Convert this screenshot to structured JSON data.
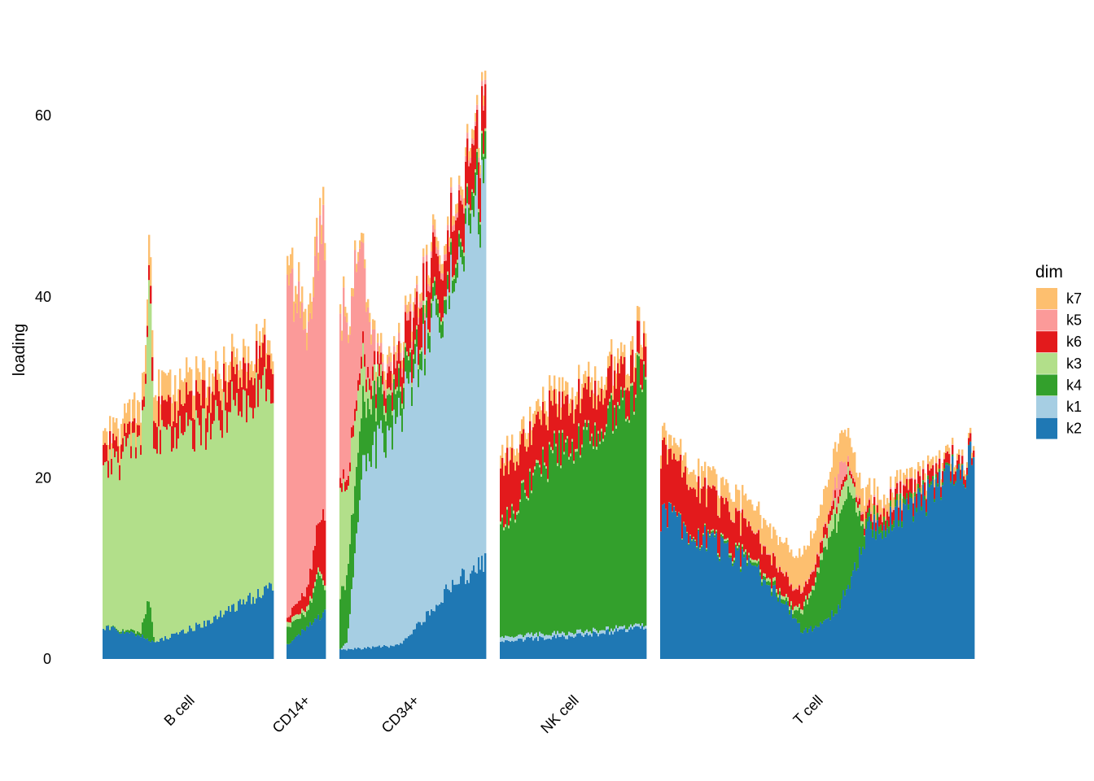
{
  "chart_data": {
    "type": "bar",
    "subtype": "stacked-structure-plot",
    "title": "",
    "xlabel": "",
    "ylabel": "loading",
    "ylim": [
      0,
      68
    ],
    "yticks": [
      0,
      20,
      40,
      60
    ],
    "grid": false,
    "legend": {
      "title": "dim",
      "placement": "right",
      "entries": [
        {
          "name": "k7",
          "color": "#FDBF6F"
        },
        {
          "name": "k5",
          "color": "#FB9A99"
        },
        {
          "name": "k6",
          "color": "#E31A1C"
        },
        {
          "name": "k3",
          "color": "#B2DF8A"
        },
        {
          "name": "k4",
          "color": "#33A02C"
        },
        {
          "name": "k1",
          "color": "#A6CEE3"
        },
        {
          "name": "k2",
          "color": "#1F78B4"
        }
      ]
    },
    "stack_order_bottom_to_top": [
      "k2",
      "k1",
      "k4",
      "k3",
      "k6",
      "k5",
      "k7"
    ],
    "groups": [
      {
        "name": "B cell",
        "profile": {
          "k2": [
            [
              0,
              3.5
            ],
            [
              0.22,
              2.5
            ],
            [
              0.3,
              1.8
            ],
            [
              0.6,
              4
            ],
            [
              1,
              8
            ]
          ],
          "k1": [
            [
              0,
              0
            ],
            [
              1,
              0
            ]
          ],
          "k4": [
            [
              0,
              0
            ],
            [
              0.22,
              0.4
            ],
            [
              0.27,
              5
            ],
            [
              0.3,
              0
            ],
            [
              1,
              0
            ]
          ],
          "k3": [
            [
              0,
              17.5
            ],
            [
              0.22,
              21
            ],
            [
              0.27,
              33
            ],
            [
              0.3,
              21.5
            ],
            [
              0.6,
              22
            ],
            [
              1,
              22.5
            ]
          ],
          "k6": [
            [
              0,
              2
            ],
            [
              0.25,
              1
            ],
            [
              0.3,
              3
            ],
            [
              1,
              3.5
            ]
          ],
          "k5": [
            [
              0,
              0
            ],
            [
              1,
              0
            ]
          ],
          "k7": [
            [
              0,
              1.5
            ],
            [
              0.27,
              3
            ],
            [
              1,
              1.5
            ]
          ]
        }
      },
      {
        "name": "CD14+",
        "profile": {
          "k2": [
            [
              0,
              1.5
            ],
            [
              0.5,
              3.5
            ],
            [
              1,
              5.5
            ]
          ],
          "k1": [
            [
              0,
              0
            ],
            [
              1,
              0
            ]
          ],
          "k4": [
            [
              0,
              2
            ],
            [
              0.5,
              1.5
            ],
            [
              0.85,
              5
            ],
            [
              1,
              1
            ]
          ],
          "k3": [
            [
              0,
              0.5
            ],
            [
              1,
              0.5
            ]
          ],
          "k6": [
            [
              0,
              0.5
            ],
            [
              0.5,
              2
            ],
            [
              1,
              8
            ]
          ],
          "k5": [
            [
              0,
              40
            ],
            [
              0.3,
              32
            ],
            [
              0.6,
              25
            ],
            [
              0.8,
              32
            ],
            [
              1,
              30
            ]
          ],
          "k7": [
            [
              0,
              2
            ],
            [
              1,
              2
            ]
          ]
        }
      },
      {
        "name": "CD34+",
        "profile": {
          "k2": [
            [
              0,
              1
            ],
            [
              0.4,
              1.5
            ],
            [
              0.55,
              4
            ],
            [
              0.75,
              8
            ],
            [
              1,
              11
            ]
          ],
          "k1": [
            [
              0,
              0
            ],
            [
              0.05,
              1
            ],
            [
              0.15,
              20
            ],
            [
              0.35,
              24
            ],
            [
              0.5,
              28
            ],
            [
              0.7,
              33
            ],
            [
              0.9,
              38
            ],
            [
              1,
              42
            ]
          ],
          "k4": [
            [
              0,
              6
            ],
            [
              0.1,
              8
            ],
            [
              0.3,
              4
            ],
            [
              0.5,
              2
            ],
            [
              0.8,
              1.5
            ],
            [
              1,
              3
            ]
          ],
          "k3": [
            [
              0,
              12
            ],
            [
              0.05,
              10
            ],
            [
              0.2,
              2
            ],
            [
              0.35,
              0.5
            ],
            [
              1,
              0.3
            ]
          ],
          "k6": [
            [
              0,
              1
            ],
            [
              0.3,
              1.5
            ],
            [
              0.5,
              4
            ],
            [
              1,
              5
            ]
          ],
          "k5": [
            [
              0,
              18
            ],
            [
              0.12,
              14
            ],
            [
              0.25,
              1
            ],
            [
              1,
              0.5
            ]
          ],
          "k7": [
            [
              0,
              1
            ],
            [
              1,
              1
            ]
          ]
        }
      },
      {
        "name": "NK cell",
        "profile": {
          "k2": [
            [
              0,
              2
            ],
            [
              0.5,
              2.5
            ],
            [
              1,
              3.5
            ]
          ],
          "k1": [
            [
              0,
              0.5
            ],
            [
              1,
              0.3
            ]
          ],
          "k4": [
            [
              0,
              12
            ],
            [
              0.3,
              19
            ],
            [
              0.6,
              22
            ],
            [
              0.9,
              25
            ],
            [
              1,
              30
            ]
          ],
          "k3": [
            [
              0,
              0.3
            ],
            [
              1,
              0.3
            ]
          ],
          "k6": [
            [
              0,
              6
            ],
            [
              0.3,
              5
            ],
            [
              0.6,
              4.5
            ],
            [
              1,
              3
            ]
          ],
          "k5": [
            [
              0,
              0
            ],
            [
              1,
              0
            ]
          ],
          "k7": [
            [
              0,
              1.5
            ],
            [
              1,
              1.5
            ]
          ]
        }
      },
      {
        "name": "T cell",
        "profile": {
          "k2": [
            [
              0,
              16
            ],
            [
              0.15,
              13
            ],
            [
              0.3,
              10
            ],
            [
              0.42,
              5
            ],
            [
              0.45,
              3
            ],
            [
              0.5,
              3.5
            ],
            [
              0.55,
              5
            ],
            [
              0.6,
              8
            ],
            [
              0.65,
              14
            ],
            [
              0.8,
              16.5
            ],
            [
              1,
              22
            ]
          ],
          "k1": [
            [
              0,
              0
            ],
            [
              1,
              0
            ]
          ],
          "k4": [
            [
              0,
              0
            ],
            [
              0.42,
              0.5
            ],
            [
              0.48,
              4
            ],
            [
              0.55,
              10
            ],
            [
              0.6,
              10
            ],
            [
              0.65,
              1
            ],
            [
              1,
              0
            ]
          ],
          "k3": [
            [
              0,
              0
            ],
            [
              0.5,
              0.5
            ],
            [
              0.55,
              2
            ],
            [
              0.6,
              2
            ],
            [
              0.65,
              0
            ],
            [
              1,
              0
            ]
          ],
          "k6": [
            [
              0,
              7
            ],
            [
              0.15,
              5
            ],
            [
              0.3,
              3
            ],
            [
              0.42,
              2
            ],
            [
              0.6,
              0.5
            ],
            [
              0.7,
              1
            ],
            [
              0.8,
              1.5
            ],
            [
              1,
              0.8
            ]
          ],
          "k5": [
            [
              0,
              0
            ],
            [
              0.54,
              0.2
            ],
            [
              0.57,
              3
            ],
            [
              0.6,
              0.3
            ],
            [
              1,
              0
            ]
          ],
          "k7": [
            [
              0,
              1.5
            ],
            [
              0.2,
              2
            ],
            [
              0.42,
              3.5
            ],
            [
              0.55,
              4
            ],
            [
              0.6,
              3
            ],
            [
              0.7,
              1.5
            ],
            [
              0.8,
              1
            ],
            [
              1,
              0.5
            ]
          ]
        }
      }
    ]
  }
}
